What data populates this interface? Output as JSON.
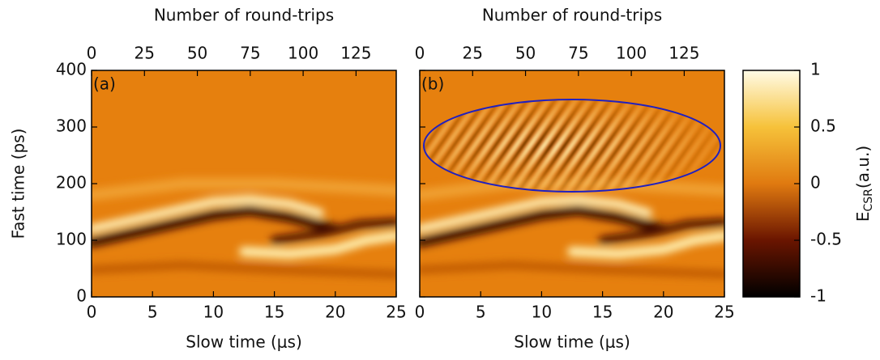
{
  "chart_data": [
    {
      "type": "heatmap",
      "panel_label": "(a)",
      "xlabel": "Slow time (μs)",
      "x2label": "Number of round-trips",
      "ylabel": "Fast time (ps)",
      "xlim": [
        0,
        25
      ],
      "xticks": [
        0,
        5,
        10,
        15,
        20,
        25
      ],
      "x2lim": [
        0,
        144
      ],
      "x2ticks": [
        0,
        25,
        50,
        75,
        100,
        125
      ],
      "ylim": [
        0,
        400
      ],
      "yticks": [
        0,
        100,
        200,
        300,
        400
      ]
    },
    {
      "type": "heatmap",
      "panel_label": "(b)",
      "xlabel": "Slow time (μs)",
      "x2label": "Number of round-trips",
      "xlim": [
        0,
        25
      ],
      "xticks": [
        0,
        5,
        10,
        15,
        20,
        25
      ],
      "x2lim": [
        0,
        144
      ],
      "x2ticks": [
        0,
        25,
        50,
        75,
        100,
        125
      ],
      "ylim": [
        0,
        400
      ],
      "yticks": [
        0,
        100,
        200,
        300,
        400
      ]
    },
    {
      "type": "colorbar",
      "label": "E",
      "label_subscript": "CSR",
      "label_suffix": "(a.u.)",
      "zlim": [
        -1,
        1
      ],
      "zticks": [
        -1,
        -0.5,
        0,
        0.5,
        1
      ]
    }
  ]
}
